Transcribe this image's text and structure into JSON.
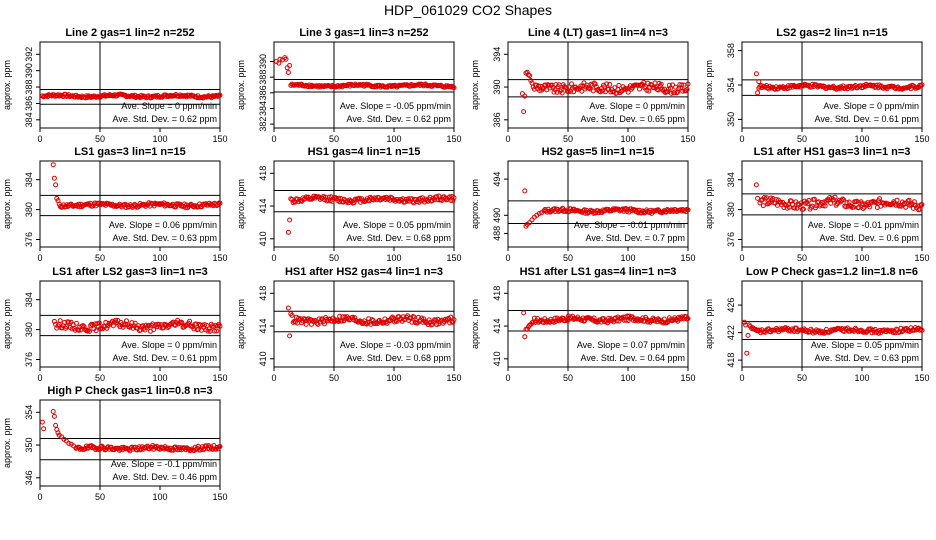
{
  "title": "HDP_061029  CO2 Shapes",
  "ylabel": "approx. ppm",
  "chart_data": [
    {
      "type": "scatter",
      "title": "Line 2 gas=1 lin=2 n=252",
      "ylabel": "approx. ppm",
      "xlim": [
        0,
        150
      ],
      "xticks": [
        0,
        50,
        100,
        150
      ],
      "ylim": [
        383,
        393.5
      ],
      "yticks": [
        384,
        386,
        388,
        390,
        392
      ],
      "hlines": [
        387.7,
        385.9
      ],
      "vline": 50,
      "slope_label": "Ave. Slope =  0 ppm/min",
      "std_label": "Ave. Std. Dev. =  0.62  ppm",
      "points": {
        "x_start": 2,
        "x_end": 150,
        "n": 170,
        "initial": [],
        "baseline": 386.9,
        "noise": 0.15,
        "wave": 0.1
      }
    },
    {
      "type": "scatter",
      "title": "Line 3 gas=1 lin=3 n=252",
      "ylabel": "approx. ppm",
      "xlim": [
        0,
        150
      ],
      "xticks": [
        0,
        50,
        100,
        150
      ],
      "ylim": [
        381.5,
        392.5
      ],
      "yticks": [
        382,
        384,
        386,
        388,
        390
      ],
      "hlines": [
        387.7,
        386.1
      ],
      "vline": 50,
      "slope_label": "Ave. Slope =  -0.05  ppm/min",
      "std_label": "Ave. Std. Dev. =  0.62  ppm",
      "points": {
        "x_start": 14,
        "x_end": 150,
        "n": 150,
        "initial": [
          [
            2,
            390
          ],
          [
            4,
            389.8
          ],
          [
            5,
            390.3
          ],
          [
            7,
            390.2
          ],
          [
            9,
            390.5
          ],
          [
            10,
            390.3
          ],
          [
            11,
            389.2
          ],
          [
            12,
            388.6
          ],
          [
            13,
            389.5
          ]
        ],
        "baseline": 386.9,
        "noise": 0.15,
        "wave": 0.1
      }
    },
    {
      "type": "scatter",
      "title": "Line 4 (LT) gas=1 lin=4 n=3",
      "ylabel": "approx. ppm",
      "xlim": [
        0,
        150
      ],
      "xticks": [
        0,
        50,
        100,
        150
      ],
      "ylim": [
        385,
        395.5
      ],
      "yticks": [
        386,
        390,
        394
      ],
      "hlines": [
        390.9,
        388.8
      ],
      "vline": 50,
      "slope_label": "Ave. Slope =  0 ppm/min",
      "std_label": "Ave. Std. Dev. =  0.65  ppm",
      "points": {
        "x_start": 22,
        "x_end": 150,
        "n": 150,
        "initial": [
          [
            12,
            389.2
          ],
          [
            13,
            387
          ],
          [
            14,
            388.9
          ],
          [
            15,
            391.7
          ],
          [
            16,
            391.8
          ],
          [
            17,
            391.5
          ],
          [
            18,
            391.4
          ],
          [
            19,
            390.8
          ],
          [
            20,
            390.5
          ],
          [
            21,
            390
          ]
        ],
        "baseline": 389.9,
        "noise": 0.55,
        "wave": 0.15
      }
    },
    {
      "type": "scatter",
      "title": "LS2 gas=2 lin=1 n=15",
      "ylabel": "approx. ppm",
      "xlim": [
        0,
        150
      ],
      "xticks": [
        0,
        50,
        100,
        150
      ],
      "ylim": [
        349,
        359
      ],
      "yticks": [
        350,
        354,
        358
      ],
      "hlines": [
        354.6,
        352.8
      ],
      "vline": 50,
      "slope_label": "Ave. Slope =  0 ppm/min",
      "std_label": "Ave. Std. Dev. =  0.61  ppm",
      "points": {
        "x_start": 14,
        "x_end": 150,
        "n": 150,
        "initial": [
          [
            12,
            355.3
          ],
          [
            13,
            353.1
          ],
          [
            14,
            354.4
          ]
        ],
        "baseline": 353.8,
        "noise": 0.2,
        "wave": 0.1
      }
    },
    {
      "type": "scatter",
      "title": "LS1 gas=3 lin=1 n=15",
      "ylabel": "approx. ppm",
      "xlim": [
        0,
        150
      ],
      "xticks": [
        0,
        50,
        100,
        150
      ],
      "ylim": [
        375,
        386.5
      ],
      "yticks": [
        376,
        380,
        384
      ],
      "hlines": [
        381.9,
        379.2
      ],
      "vline": 50,
      "slope_label": "Ave. Slope =  0.06  ppm/min",
      "std_label": "Ave. Std. Dev. =  0.63  ppm",
      "points": {
        "x_start": 16,
        "x_end": 150,
        "n": 150,
        "initial": [
          [
            11,
            386
          ],
          [
            12,
            384.2
          ],
          [
            13,
            383.3
          ],
          [
            14,
            381.5
          ],
          [
            15,
            381.2
          ]
        ],
        "baseline": 380.6,
        "noise": 0.25,
        "wave": 0.1
      }
    },
    {
      "type": "scatter",
      "title": "HS1 gas=4 lin=1 n=15",
      "ylabel": "approx. ppm",
      "xlim": [
        0,
        150
      ],
      "xticks": [
        0,
        50,
        100,
        150
      ],
      "ylim": [
        409,
        419.5
      ],
      "yticks": [
        410,
        414,
        418
      ],
      "hlines": [
        415.9,
        413.3
      ],
      "vline": 50,
      "slope_label": "Ave. Slope =  0.05  ppm/min",
      "std_label": "Ave. Std. Dev. =  0.68  ppm",
      "points": {
        "x_start": 15,
        "x_end": 150,
        "n": 150,
        "initial": [
          [
            12,
            410.8
          ],
          [
            13,
            412.3
          ],
          [
            14,
            414.9
          ]
        ],
        "baseline": 414.8,
        "noise": 0.3,
        "wave": 0.15
      }
    },
    {
      "type": "scatter",
      "title": "HS2 gas=5 lin=1 n=15",
      "ylabel": "approx. ppm",
      "xlim": [
        0,
        150
      ],
      "xticks": [
        0,
        50,
        100,
        150
      ],
      "ylim": [
        486.5,
        496
      ],
      "yticks": [
        488,
        490,
        494
      ],
      "hlines": [
        491.6,
        489.1
      ],
      "vline": 50,
      "slope_label": "Ave. Slope =  -0.01  ppm/min",
      "std_label": "Ave. Std. Dev. =  0.7  ppm",
      "points": {
        "x_start": 30,
        "x_end": 150,
        "n": 140,
        "initial": [
          [
            14,
            492.7
          ],
          [
            15,
            488.8
          ],
          [
            16,
            489
          ],
          [
            18,
            489.2
          ],
          [
            20,
            489.5
          ],
          [
            22,
            489.8
          ],
          [
            24,
            490
          ],
          [
            26,
            490.2
          ],
          [
            28,
            490.3
          ]
        ],
        "baseline": 490.5,
        "noise": 0.2,
        "wave": 0.1
      }
    },
    {
      "type": "scatter",
      "title": "LS1 after HS1 gas=3 lin=1 n=3",
      "ylabel": "approx. ppm",
      "xlim": [
        0,
        150
      ],
      "xticks": [
        0,
        50,
        100,
        150
      ],
      "ylim": [
        375,
        386.5
      ],
      "yticks": [
        376,
        380,
        384
      ],
      "hlines": [
        382.1,
        379.3
      ],
      "vline": 50,
      "slope_label": "Ave. Slope =  -0.01  ppm/min",
      "std_label": "Ave. Std. Dev. =  0.6  ppm",
      "points": {
        "x_start": 15,
        "x_end": 150,
        "n": 150,
        "initial": [
          [
            12,
            383.3
          ],
          [
            13,
            381.5
          ]
        ],
        "baseline": 380.8,
        "noise": 0.6,
        "wave": 0.3
      }
    },
    {
      "type": "scatter",
      "title": "LS1 after LS2 gas=3 lin=1 n=3",
      "ylabel": "approx. ppm",
      "xlim": [
        0,
        150
      ],
      "xticks": [
        0,
        50,
        100,
        150
      ],
      "ylim": [
        375,
        386.5
      ],
      "yticks": [
        376,
        380,
        384
      ],
      "hlines": [
        381.9,
        379.2
      ],
      "vline": 50,
      "slope_label": "Ave. Slope =  0 ppm/min",
      "std_label": "Ave. Std. Dev. =  0.61  ppm",
      "points": {
        "x_start": 15,
        "x_end": 150,
        "n": 150,
        "initial": [
          [
            12,
            381.1
          ],
          [
            13,
            380.7
          ],
          [
            14,
            380.2
          ]
        ],
        "baseline": 380.5,
        "noise": 0.5,
        "wave": 0.25
      }
    },
    {
      "type": "scatter",
      "title": "HS1 after HS2 gas=4 lin=1 n=3",
      "ylabel": "approx. ppm",
      "xlim": [
        0,
        150
      ],
      "xticks": [
        0,
        50,
        100,
        150
      ],
      "ylim": [
        409,
        419.5
      ],
      "yticks": [
        410,
        414,
        418
      ],
      "hlines": [
        415.8,
        413.3
      ],
      "vline": 50,
      "slope_label": "Ave. Slope =  -0.03  ppm/min",
      "std_label": "Ave. Std. Dev. =  0.68  ppm",
      "points": {
        "x_start": 16,
        "x_end": 150,
        "n": 150,
        "initial": [
          [
            12,
            416.2
          ],
          [
            13,
            412.8
          ],
          [
            14,
            415.5
          ],
          [
            15,
            415.3
          ]
        ],
        "baseline": 414.7,
        "noise": 0.4,
        "wave": 0.2
      }
    },
    {
      "type": "scatter",
      "title": "HS1 after LS1 gas=4 lin=1 n=3",
      "ylabel": "approx. ppm",
      "xlim": [
        0,
        150
      ],
      "xticks": [
        0,
        50,
        100,
        150
      ],
      "ylim": [
        409,
        419.5
      ],
      "yticks": [
        410,
        414,
        418
      ],
      "hlines": [
        415.9,
        413.4
      ],
      "vline": 50,
      "slope_label": "Ave. Slope =  0.07  ppm/min",
      "std_label": "Ave. Std. Dev. =  0.64  ppm",
      "points": {
        "x_start": 22,
        "x_end": 150,
        "n": 150,
        "initial": [
          [
            13,
            415.6
          ],
          [
            14,
            412.7
          ],
          [
            15,
            413.6
          ],
          [
            16,
            413.6
          ],
          [
            17,
            413.9
          ],
          [
            18,
            414.1
          ],
          [
            19,
            414.2
          ],
          [
            20,
            414.4
          ],
          [
            21,
            414.5
          ]
        ],
        "baseline": 414.8,
        "noise": 0.3,
        "wave": 0.15
      }
    },
    {
      "type": "scatter",
      "title": "Low P Check gas=1.2 lin=1.8 n=6",
      "ylabel": "approx. ppm",
      "xlim": [
        0,
        150
      ],
      "xticks": [
        0,
        50,
        100,
        150
      ],
      "ylim": [
        417,
        429.5
      ],
      "yticks": [
        418,
        422,
        426
      ],
      "hlines": [
        423.6,
        421
      ],
      "vline": 50,
      "slope_label": "Ave. Slope =  0.05  ppm/min",
      "std_label": "Ave. Std. Dev. =  0.63  ppm",
      "points": {
        "x_start": 12,
        "x_end": 150,
        "n": 150,
        "initial": [
          [
            2,
            423.5
          ],
          [
            3,
            423.1
          ],
          [
            4,
            419
          ],
          [
            5,
            421.6
          ],
          [
            6,
            423.1
          ],
          [
            7,
            422.9
          ],
          [
            8,
            422.6
          ],
          [
            9,
            422.7
          ],
          [
            10,
            422.5
          ],
          [
            11,
            422.5
          ]
        ],
        "baseline": 422.3,
        "noise": 0.3,
        "wave": 0.15
      }
    },
    {
      "type": "scatter",
      "title": "High P Check gas=1 lin=0.8 n=3",
      "ylabel": "approx. ppm",
      "xlim": [
        0,
        150
      ],
      "xticks": [
        0,
        50,
        100,
        150
      ],
      "ylim": [
        345,
        355.5
      ],
      "yticks": [
        346,
        350,
        354
      ],
      "hlines": [
        350.8,
        348.2
      ],
      "vline": 50,
      "slope_label": "Ave. Slope =  -0.1  ppm/min",
      "std_label": "Ave. Std. Dev. =  0.46  ppm",
      "points": {
        "x_start": 30,
        "x_end": 150,
        "n": 140,
        "initial": [
          [
            2,
            352.8
          ],
          [
            3,
            352
          ],
          [
            11,
            354.1
          ],
          [
            12,
            353.5
          ],
          [
            13,
            352.4
          ],
          [
            14,
            351.9
          ],
          [
            15,
            351.5
          ],
          [
            16,
            351.2
          ],
          [
            18,
            351
          ],
          [
            20,
            350.7
          ],
          [
            22,
            350.5
          ],
          [
            24,
            350.2
          ],
          [
            26,
            350.1
          ],
          [
            28,
            349.9
          ]
        ],
        "baseline": 349.6,
        "noise": 0.25,
        "wave": 0.1
      }
    }
  ]
}
